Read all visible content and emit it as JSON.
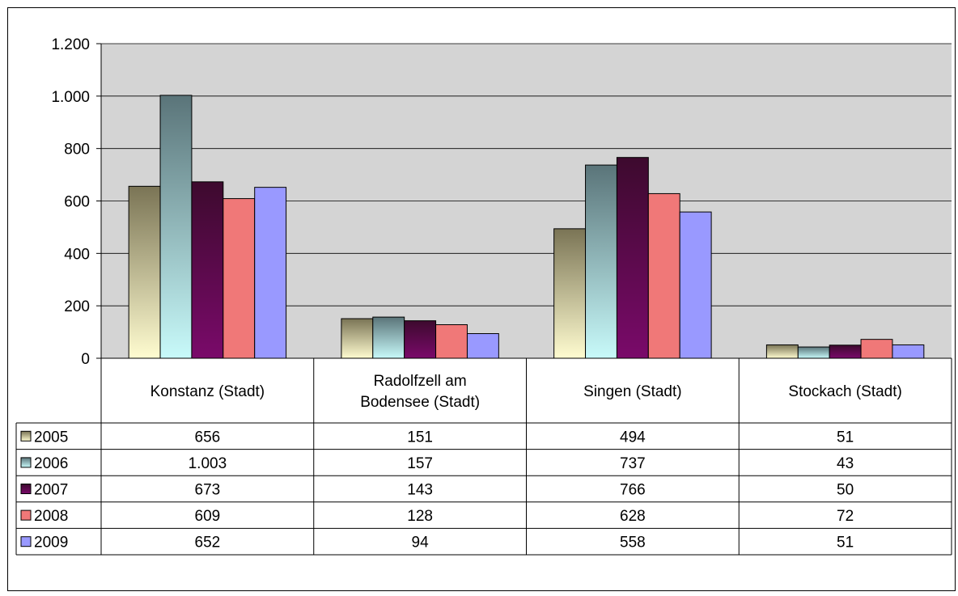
{
  "chart_data": {
    "type": "bar",
    "title": "",
    "xlabel": "",
    "ylabel": "",
    "ylim": [
      0,
      1200
    ],
    "yticks": [
      0,
      200,
      400,
      600,
      800,
      1000,
      1200
    ],
    "ytick_labels": [
      "0",
      "200",
      "400",
      "600",
      "800",
      "1.000",
      "1.200"
    ],
    "grid": "horizontal",
    "legend": "data-table-left",
    "categories": [
      [
        "Konstanz (Stadt)"
      ],
      [
        "Radolfzell am",
        "Bodensee (Stadt)"
      ],
      [
        "Singen (Stadt)"
      ],
      [
        "Stockach (Stadt)"
      ]
    ],
    "series": [
      {
        "name": "2005",
        "values": [
          656,
          151,
          494,
          51
        ],
        "labels": [
          "656",
          "151",
          "494",
          "51"
        ],
        "color": "#7a7455",
        "color_light": "#fffcd0"
      },
      {
        "name": "2006",
        "values": [
          1003,
          157,
          737,
          43
        ],
        "labels": [
          "1.003",
          "157",
          "737",
          "43"
        ],
        "color": "#5a7479",
        "color_light": "#c8fafa"
      },
      {
        "name": "2007",
        "values": [
          673,
          143,
          766,
          50
        ],
        "labels": [
          "673",
          "143",
          "766",
          "50"
        ],
        "color": "#3d0a2e",
        "color_light": "#7a0a6a"
      },
      {
        "name": "2008",
        "values": [
          609,
          128,
          628,
          72
        ],
        "labels": [
          "609",
          "128",
          "628",
          "72"
        ],
        "color": "#f07878",
        "color_light": "#f07878"
      },
      {
        "name": "2009",
        "values": [
          652,
          94,
          558,
          51
        ],
        "labels": [
          "652",
          "94",
          "558",
          "51"
        ],
        "color": "#9999ff",
        "color_light": "#9999ff"
      }
    ],
    "colors": {
      "plot_background": "#d4d4d4",
      "grid": "#000000"
    }
  }
}
